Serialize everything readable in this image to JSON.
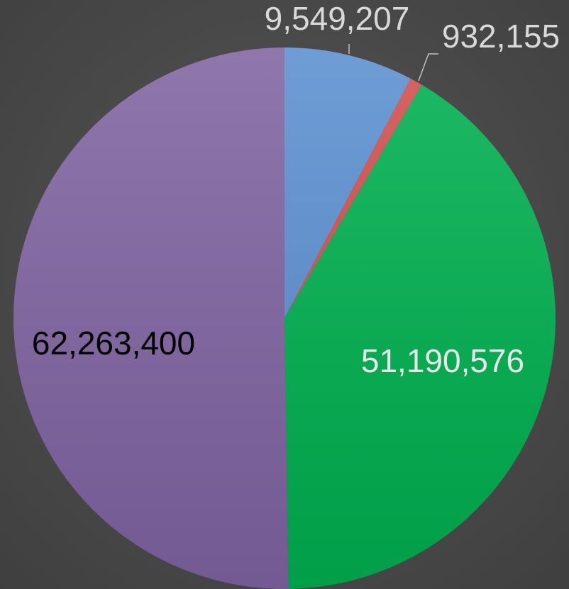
{
  "chart_data": {
    "type": "pie",
    "values": [
      9549207,
      932155,
      51190576,
      62263400
    ],
    "value_labels": [
      "9,549,207",
      "932,155",
      "51,190,576",
      "62,263,400"
    ],
    "colors": [
      "#5b8fd0",
      "#d0504d",
      "#00b050",
      "#8064a2"
    ],
    "start_angle": 0,
    "direction": "clockwise"
  }
}
